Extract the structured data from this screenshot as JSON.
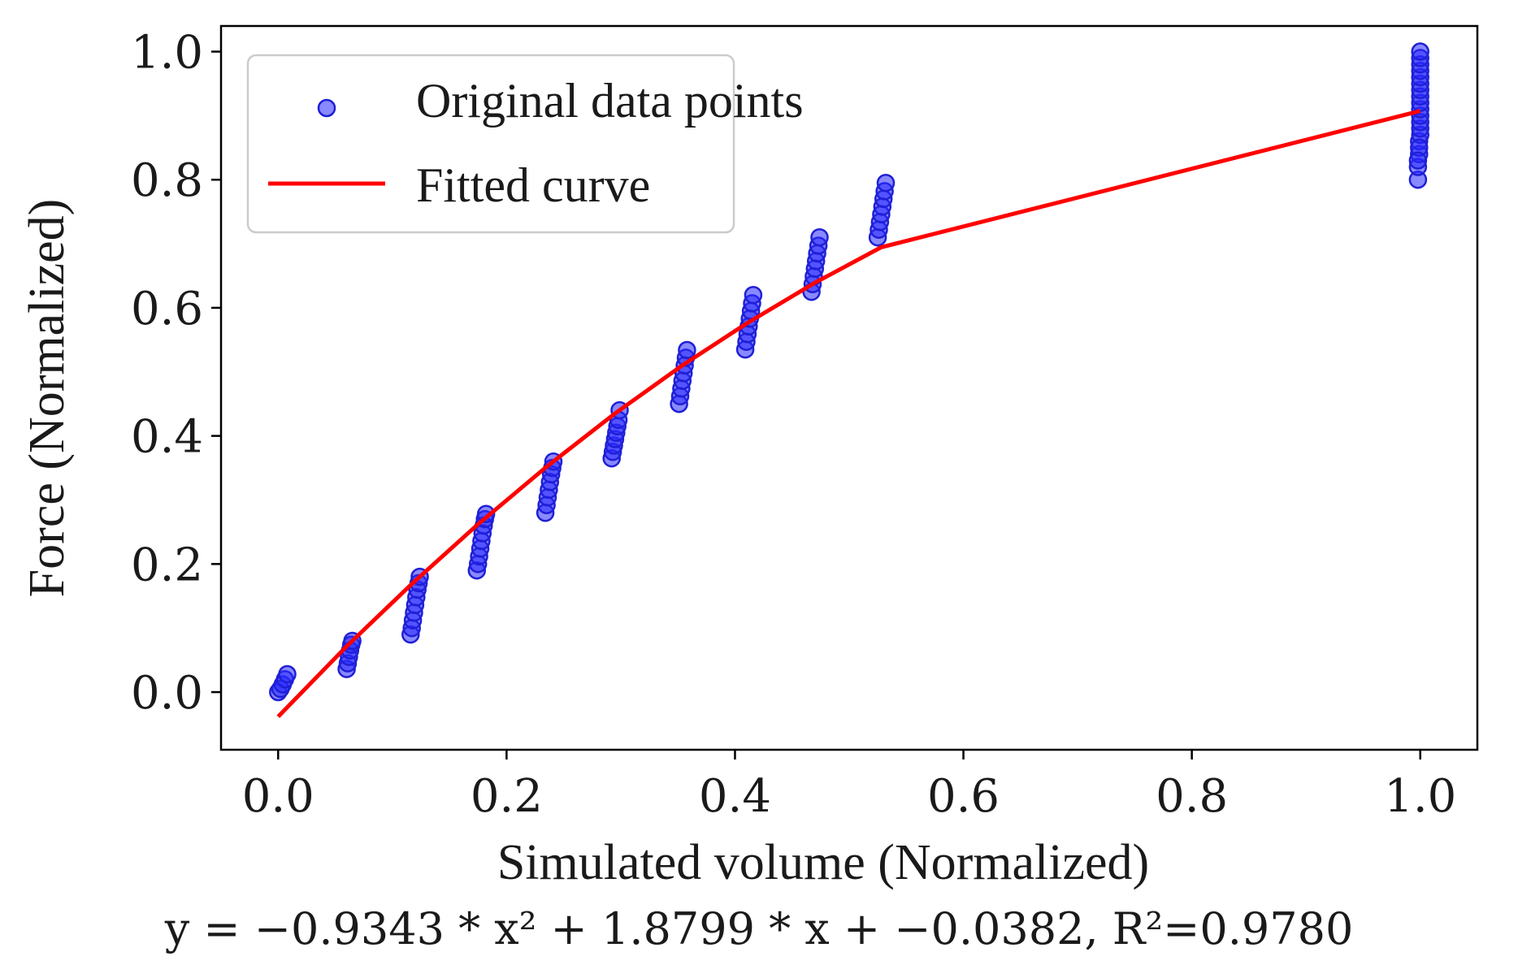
{
  "chart_data": {
    "type": "scatter",
    "title": "",
    "xlabel": "Simulated volume (Normalized)",
    "ylabel": "Force (Normalized)",
    "xlim": [
      -0.05,
      1.05
    ],
    "ylim": [
      -0.09,
      1.04
    ],
    "xticks": [
      0.0,
      0.2,
      0.4,
      0.6,
      0.8,
      1.0
    ],
    "xtick_labels": [
      "0.0",
      "0.2",
      "0.4",
      "0.6",
      "0.8",
      "1.0"
    ],
    "yticks": [
      0.0,
      0.2,
      0.4,
      0.6,
      0.8,
      1.0
    ],
    "ytick_labels": [
      "0.0",
      "0.2",
      "0.4",
      "0.6",
      "0.8",
      "1.0"
    ],
    "grid": false,
    "legend_position": "top-left",
    "series": [
      {
        "name": "Original data points",
        "type": "scatter",
        "color": "#2828ff",
        "x": [
          0.0,
          0.002,
          0.004,
          0.006,
          0.008,
          0.06,
          0.061,
          0.062,
          0.063,
          0.064,
          0.065,
          0.116,
          0.117,
          0.118,
          0.119,
          0.12,
          0.121,
          0.122,
          0.123,
          0.124,
          0.174,
          0.175,
          0.176,
          0.177,
          0.178,
          0.179,
          0.18,
          0.181,
          0.182,
          0.234,
          0.235,
          0.236,
          0.237,
          0.238,
          0.239,
          0.24,
          0.241,
          0.292,
          0.293,
          0.294,
          0.295,
          0.296,
          0.297,
          0.298,
          0.299,
          0.351,
          0.352,
          0.353,
          0.354,
          0.355,
          0.356,
          0.357,
          0.358,
          0.409,
          0.41,
          0.411,
          0.412,
          0.413,
          0.414,
          0.415,
          0.416,
          0.467,
          0.468,
          0.469,
          0.47,
          0.471,
          0.472,
          0.473,
          0.474,
          0.525,
          0.526,
          0.527,
          0.528,
          0.529,
          0.53,
          0.531,
          0.532,
          0.998,
          0.998,
          0.999,
          0.999,
          1.0,
          1.0,
          1.0,
          1.0,
          1.0,
          1.0,
          1.0,
          1.0,
          1.0,
          1.0,
          1.0,
          1.0,
          1.0,
          1.0,
          0.999,
          0.998
        ],
        "y": [
          0.0,
          0.005,
          0.012,
          0.02,
          0.028,
          0.036,
          0.045,
          0.055,
          0.065,
          0.074,
          0.08,
          0.09,
          0.1,
          0.112,
          0.124,
          0.136,
          0.148,
          0.16,
          0.17,
          0.18,
          0.19,
          0.2,
          0.212,
          0.224,
          0.236,
          0.248,
          0.26,
          0.27,
          0.278,
          0.28,
          0.292,
          0.304,
          0.316,
          0.328,
          0.34,
          0.35,
          0.36,
          0.365,
          0.375,
          0.385,
          0.395,
          0.405,
          0.415,
          0.425,
          0.44,
          0.45,
          0.462,
          0.474,
          0.486,
          0.498,
          0.51,
          0.522,
          0.534,
          0.535,
          0.547,
          0.559,
          0.571,
          0.583,
          0.595,
          0.607,
          0.62,
          0.625,
          0.637,
          0.649,
          0.661,
          0.673,
          0.685,
          0.697,
          0.71,
          0.71,
          0.722,
          0.734,
          0.746,
          0.758,
          0.77,
          0.782,
          0.795,
          0.8,
          0.82,
          0.84,
          0.86,
          0.87,
          0.88,
          0.89,
          0.9,
          0.91,
          0.92,
          0.93,
          0.94,
          0.95,
          0.96,
          0.97,
          0.98,
          0.99,
          1.0,
          0.85,
          0.83
        ]
      },
      {
        "name": "Fitted curve",
        "type": "line",
        "color": "#ff0000",
        "x": [
          0.0,
          0.06,
          0.118,
          0.176,
          0.236,
          0.294,
          0.354,
          0.41,
          0.47,
          0.528,
          1.0
        ],
        "y": [
          -0.0382,
          0.0716,
          0.1705,
          0.2636,
          0.3533,
          0.4338,
          0.5102,
          0.5753,
          0.6391,
          0.6945,
          0.9074
        ]
      }
    ],
    "equation": "y = −0.9343 * x² + 1.8799 * x + −0.0382, R²=0.9780"
  }
}
